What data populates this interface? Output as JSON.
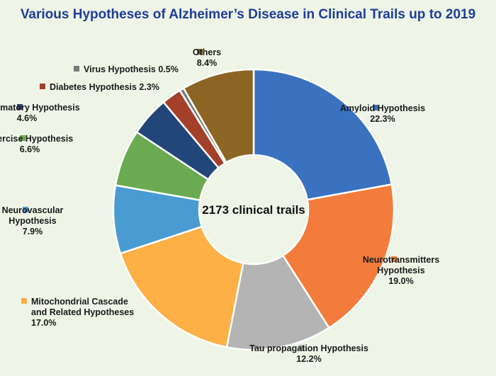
{
  "chart_data": {
    "type": "pie",
    "title": "Various Hypotheses of Alzheimer’s Disease in Clinical Trails up to 2019",
    "center_label": "2173 clinical trails",
    "slices": [
      {
        "label": "Amyloid Hypothesis",
        "value": 22.3,
        "value_label": "22.3%",
        "color": "#3a72c0"
      },
      {
        "label": "Neurotransmitters Hypothesis",
        "value": 19.0,
        "value_label": "19.0%",
        "color": "#f37c3c"
      },
      {
        "label": "Tau propagation Hypothesis",
        "value": 12.2,
        "value_label": "12.2%",
        "color": "#b4b4b4"
      },
      {
        "label": "Mitochondrial Cascade and Related Hypotheses",
        "value": 17.0,
        "value_label": "17.0%",
        "color": "#fdb045"
      },
      {
        "label": "Neurovascular Hypothesis",
        "value": 7.9,
        "value_label": "7.9%",
        "color": "#4a9bd2"
      },
      {
        "label": "Exercise Hypothesis",
        "value": 6.6,
        "value_label": "6.6%",
        "color": "#6aaa50"
      },
      {
        "label": "Inflammatory  Hypothesis",
        "value": 4.6,
        "value_label": "4.6%",
        "color": "#23467a"
      },
      {
        "label": "Diabetes Hypothesis",
        "value": 2.3,
        "value_label": "2.3%",
        "color": "#a3402a"
      },
      {
        "label": "Virus Hypothesis",
        "value": 0.5,
        "value_label": "0.5%",
        "color": "#7a7a7a"
      },
      {
        "label": "Others",
        "value": 8.4,
        "value_label": "8.4%",
        "color": "#8c6525"
      }
    ]
  }
}
